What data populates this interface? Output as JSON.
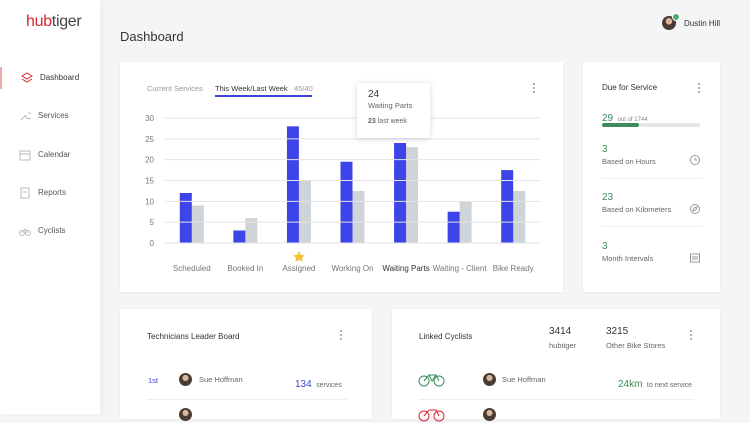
{
  "sidebar": {
    "logo": {
      "first": "hub",
      "second": "tiger"
    },
    "nav": [
      "Dashboard",
      "Services",
      "Calendar",
      "Reports",
      "Cyclists"
    ]
  },
  "header": {
    "title": "Dashboard",
    "user": "Dustin Hill"
  },
  "chart_card": {
    "tabs": [
      "Current Services",
      "This Week/Last Week"
    ],
    "count": "45/40",
    "tooltip_suffix": "last week"
  },
  "chart_data": {
    "type": "bar",
    "categories": [
      "Scheduled",
      "Booked In",
      "Assigned",
      "Working On",
      "Waiting Parts",
      "Waiting - Client",
      "Bike Ready"
    ],
    "series": [
      {
        "color": "#3d45e8",
        "values": [
          12,
          3,
          28,
          19.5,
          24,
          7.5,
          17.5
        ]
      },
      {
        "color": "#cfd4d8",
        "values": [
          9,
          6,
          15,
          12.5,
          23,
          10,
          12.5
        ]
      }
    ],
    "ylim": [
      0,
      30
    ],
    "yticks": [
      0,
      5,
      10,
      15,
      20,
      25,
      30
    ],
    "grid": true
  },
  "due": {
    "title": "Due for Service",
    "count": 29,
    "total_label": "out of 1744",
    "items": [
      {
        "value": 3,
        "label": "Based on Hours"
      },
      {
        "value": 23,
        "label": "Based on Kilometers"
      },
      {
        "value": 3,
        "label": "Month Intervals"
      }
    ]
  },
  "leaderboard": {
    "title": "Technicians Leader Board",
    "rows": [
      {
        "rank": "1st",
        "name": "Sue Hoffman",
        "count": 134,
        "unit": "services"
      }
    ]
  },
  "linked": {
    "title": "Linked Cyclists",
    "stats": [
      {
        "value": 3414,
        "label": "hubtiger"
      },
      {
        "value": 3215,
        "label": "Other Bike Stores"
      }
    ],
    "rows": [
      {
        "name": "Sue Hoffman",
        "distance": "24km",
        "note": "to next service"
      }
    ]
  }
}
